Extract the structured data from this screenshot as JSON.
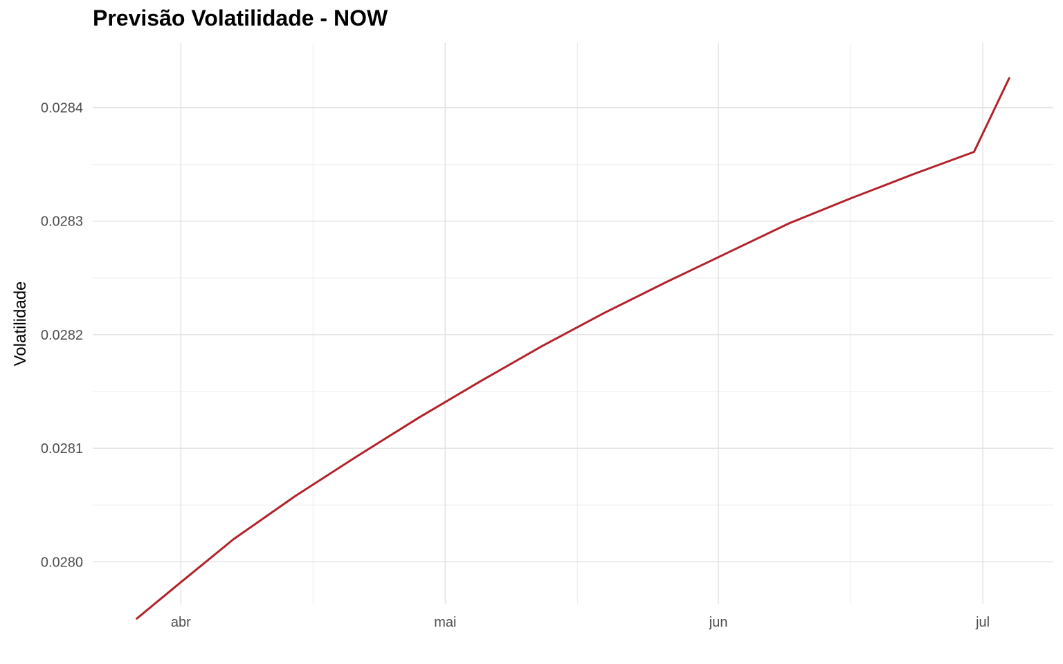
{
  "chart_data": {
    "type": "line",
    "title": "Previsão Volatilidade - NOW",
    "xlabel": "",
    "ylabel": "Volatilidade",
    "x_tick_labels": [
      {
        "label": "abr",
        "date": "2024-04-01"
      },
      {
        "label": "mai",
        "date": "2024-05-01"
      },
      {
        "label": "jun",
        "date": "2024-06-01"
      },
      {
        "label": "jul",
        "date": "2024-07-01"
      }
    ],
    "y_tick_labels": [
      "0.0280",
      "0.0281",
      "0.0282",
      "0.0283",
      "0.0284"
    ],
    "y_ticks": [
      0.028,
      0.0281,
      0.0282,
      0.0283,
      0.0284
    ],
    "xlim": [
      "2024-03-22",
      "2024-07-09"
    ],
    "ylim": [
      0.027963,
      0.028457
    ],
    "grid": true,
    "line_color": "#b2222a",
    "series": [
      {
        "x": [
          "2024-03-27",
          "2024-04-01",
          "2024-04-07",
          "2024-04-14",
          "2024-04-21",
          "2024-04-28",
          "2024-05-05",
          "2024-05-12",
          "2024-05-19",
          "2024-05-26",
          "2024-06-02",
          "2024-06-09",
          "2024-06-16",
          "2024-06-23",
          "2024-06-30",
          "2024-07-04"
        ],
        "values": [
          0.02795,
          0.027982,
          0.02802,
          0.028058,
          0.028093,
          0.028127,
          0.028159,
          0.02819,
          0.028219,
          0.028246,
          0.028272,
          0.028298,
          0.02832,
          0.028341,
          0.028361,
          0.028426
        ]
      }
    ]
  }
}
